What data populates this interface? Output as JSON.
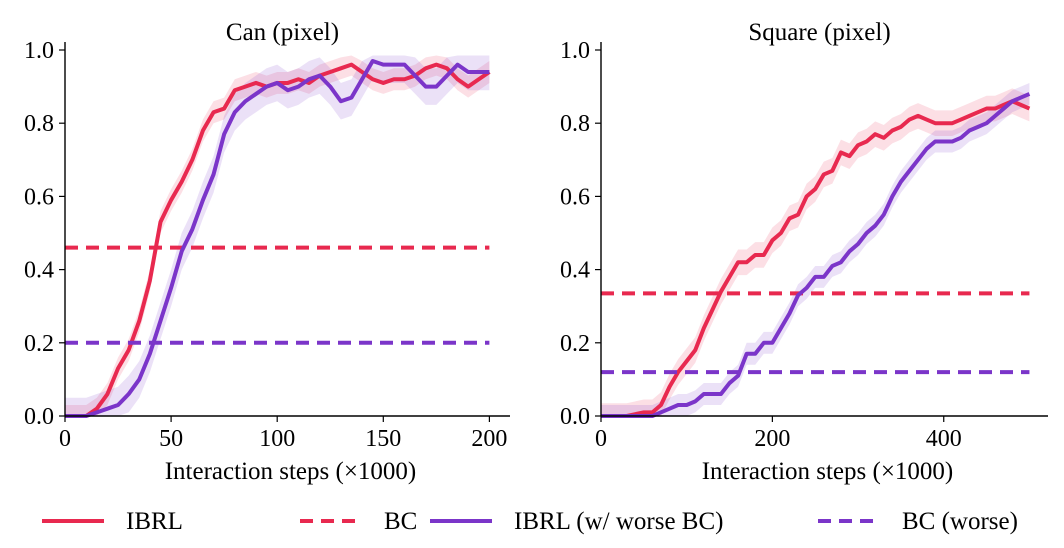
{
  "colors": {
    "ibrl": "#e8294f",
    "bc": "#e8294f",
    "ibrl_worse": "#7b35c9",
    "bc_worse": "#7b35c9"
  },
  "legend": [
    {
      "label": "IBRL",
      "style": "solid",
      "color": "#e8294f"
    },
    {
      "label": "BC",
      "style": "dashed",
      "color": "#e8294f"
    },
    {
      "label": "IBRL (w/ worse BC)",
      "style": "solid",
      "color": "#7b35c9"
    },
    {
      "label": "BC (worse)",
      "style": "dashed",
      "color": "#7b35c9"
    }
  ],
  "chart_data": [
    {
      "type": "line",
      "title": "Can (pixel)",
      "xlabel": "Interaction steps (×1000)",
      "ylabel": "",
      "xlim": [
        0,
        205
      ],
      "ylim": [
        0,
        1.0
      ],
      "xticks": [
        0,
        50,
        100,
        150,
        200
      ],
      "yticks": [
        0.0,
        0.2,
        0.4,
        0.6,
        0.8,
        1.0
      ],
      "ytick_labels": [
        "0.0",
        "0.2",
        "0.4",
        "0.6",
        "0.8",
        "1.0"
      ],
      "grid": false,
      "series": [
        {
          "name": "IBRL",
          "style": "solid",
          "color": "#e8294f",
          "x": [
            0,
            10,
            15,
            20,
            25,
            30,
            35,
            40,
            45,
            50,
            55,
            60,
            65,
            70,
            75,
            80,
            85,
            90,
            95,
            100,
            105,
            110,
            115,
            120,
            125,
            130,
            135,
            140,
            145,
            150,
            155,
            160,
            165,
            170,
            175,
            180,
            185,
            190,
            195,
            200
          ],
          "y": [
            0.0,
            0.0,
            0.02,
            0.06,
            0.13,
            0.18,
            0.26,
            0.37,
            0.53,
            0.59,
            0.64,
            0.7,
            0.78,
            0.83,
            0.84,
            0.89,
            0.9,
            0.91,
            0.9,
            0.91,
            0.91,
            0.92,
            0.91,
            0.93,
            0.94,
            0.95,
            0.96,
            0.94,
            0.92,
            0.91,
            0.92,
            0.92,
            0.93,
            0.95,
            0.96,
            0.95,
            0.92,
            0.9,
            0.92,
            0.94
          ],
          "band": 0.03
        },
        {
          "name": "BC",
          "style": "dashed",
          "color": "#e8294f",
          "x": [
            0,
            200
          ],
          "y": [
            0.46,
            0.46
          ]
        },
        {
          "name": "IBRL (w/ worse BC)",
          "style": "solid",
          "color": "#7b35c9",
          "x": [
            0,
            10,
            15,
            20,
            25,
            30,
            35,
            40,
            45,
            50,
            55,
            60,
            65,
            70,
            75,
            80,
            85,
            90,
            95,
            100,
            105,
            110,
            115,
            120,
            125,
            130,
            135,
            140,
            145,
            150,
            155,
            160,
            165,
            170,
            175,
            180,
            185,
            190,
            195,
            200
          ],
          "y": [
            0.0,
            0.0,
            0.01,
            0.02,
            0.03,
            0.06,
            0.1,
            0.17,
            0.26,
            0.35,
            0.45,
            0.51,
            0.59,
            0.66,
            0.77,
            0.83,
            0.86,
            0.88,
            0.9,
            0.91,
            0.89,
            0.9,
            0.92,
            0.93,
            0.9,
            0.86,
            0.87,
            0.92,
            0.97,
            0.96,
            0.96,
            0.96,
            0.93,
            0.9,
            0.9,
            0.93,
            0.96,
            0.94,
            0.94,
            0.94
          ],
          "band": 0.05
        },
        {
          "name": "BC (worse)",
          "style": "dashed",
          "color": "#7b35c9",
          "x": [
            0,
            200
          ],
          "y": [
            0.2,
            0.2
          ]
        }
      ]
    },
    {
      "type": "line",
      "title": "Square (pixel)",
      "xlabel": "Interaction steps (×1000)",
      "ylabel": "",
      "xlim": [
        0,
        510
      ],
      "ylim": [
        0,
        1.0
      ],
      "xticks": [
        0,
        200,
        400
      ],
      "yticks": [
        0.0,
        0.2,
        0.4,
        0.6,
        0.8,
        1.0
      ],
      "ytick_labels": [
        "0.0",
        "0.2",
        "0.4",
        "0.6",
        "0.8",
        "1.0"
      ],
      "grid": false,
      "series": [
        {
          "name": "IBRL",
          "style": "solid",
          "color": "#e8294f",
          "x": [
            0,
            30,
            50,
            60,
            70,
            80,
            90,
            100,
            110,
            120,
            130,
            140,
            150,
            160,
            170,
            180,
            190,
            200,
            210,
            220,
            230,
            240,
            250,
            260,
            270,
            280,
            290,
            300,
            310,
            320,
            330,
            340,
            350,
            360,
            370,
            380,
            390,
            400,
            410,
            420,
            430,
            440,
            450,
            460,
            470,
            480,
            490,
            500
          ],
          "y": [
            0.0,
            0.0,
            0.01,
            0.01,
            0.03,
            0.08,
            0.12,
            0.15,
            0.18,
            0.24,
            0.29,
            0.34,
            0.38,
            0.42,
            0.42,
            0.44,
            0.44,
            0.48,
            0.5,
            0.54,
            0.55,
            0.6,
            0.62,
            0.66,
            0.67,
            0.72,
            0.71,
            0.74,
            0.75,
            0.77,
            0.76,
            0.78,
            0.79,
            0.81,
            0.82,
            0.81,
            0.8,
            0.8,
            0.8,
            0.81,
            0.82,
            0.83,
            0.84,
            0.84,
            0.85,
            0.86,
            0.85,
            0.84
          ],
          "band": 0.035
        },
        {
          "name": "BC",
          "style": "dashed",
          "color": "#e8294f",
          "x": [
            0,
            500
          ],
          "y": [
            0.335,
            0.335
          ]
        },
        {
          "name": "IBRL (w/ worse BC)",
          "style": "solid",
          "color": "#7b35c9",
          "x": [
            0,
            60,
            70,
            80,
            90,
            100,
            110,
            120,
            130,
            140,
            150,
            160,
            170,
            180,
            190,
            200,
            210,
            220,
            230,
            240,
            250,
            260,
            270,
            280,
            290,
            300,
            310,
            320,
            330,
            340,
            350,
            360,
            370,
            380,
            390,
            400,
            410,
            420,
            430,
            440,
            450,
            460,
            470,
            480,
            490,
            500
          ],
          "y": [
            0.0,
            0.0,
            0.01,
            0.02,
            0.03,
            0.03,
            0.04,
            0.06,
            0.06,
            0.06,
            0.09,
            0.11,
            0.17,
            0.17,
            0.2,
            0.2,
            0.24,
            0.28,
            0.33,
            0.35,
            0.38,
            0.38,
            0.41,
            0.42,
            0.45,
            0.47,
            0.5,
            0.52,
            0.55,
            0.6,
            0.64,
            0.67,
            0.7,
            0.73,
            0.75,
            0.75,
            0.75,
            0.76,
            0.78,
            0.79,
            0.8,
            0.82,
            0.84,
            0.86,
            0.87,
            0.88
          ],
          "band": 0.03
        },
        {
          "name": "BC (worse)",
          "style": "dashed",
          "color": "#7b35c9",
          "x": [
            0,
            500
          ],
          "y": [
            0.12,
            0.12
          ]
        }
      ]
    }
  ]
}
